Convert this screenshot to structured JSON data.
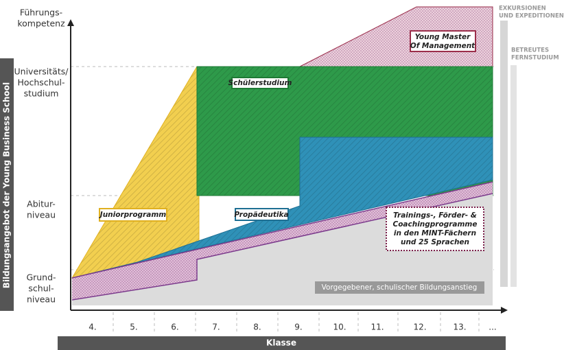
{
  "y_axis": {
    "title": "Bildungsangebot der Young Business School",
    "levels": [
      [
        "Führungs-",
        "kompetenz"
      ],
      [
        "Universitäts/",
        "Hochschul-",
        "studium"
      ],
      [
        "Abitur-",
        "niveau"
      ],
      [
        "Grund-",
        "schul-",
        "niveau"
      ]
    ]
  },
  "x_axis": {
    "title": "Klasse",
    "classes": [
      "4.",
      "5.",
      "6.",
      "7.",
      "8.",
      "9.",
      "10.",
      "11.",
      "12.",
      "13.",
      "..."
    ]
  },
  "programs": {
    "junior": "Juniorprogramm",
    "studium": "Schülerstudium",
    "propaedeutika": "Propädeutika",
    "master": [
      "Young Master",
      "Of Management"
    ],
    "trainings": [
      "Trainings-, Förder- &",
      "Coachingprogramme",
      "in den MINT-Fächern",
      "und 25 Sprachen"
    ],
    "baseline": "Vorgegebener, schulischer Bildungsanstieg"
  },
  "side": {
    "excursions": [
      "EXKURSIONEN",
      "UND EXPEDITIONEN"
    ],
    "distance": [
      "BETREUTES",
      "FERNSTUDIUM"
    ]
  }
}
